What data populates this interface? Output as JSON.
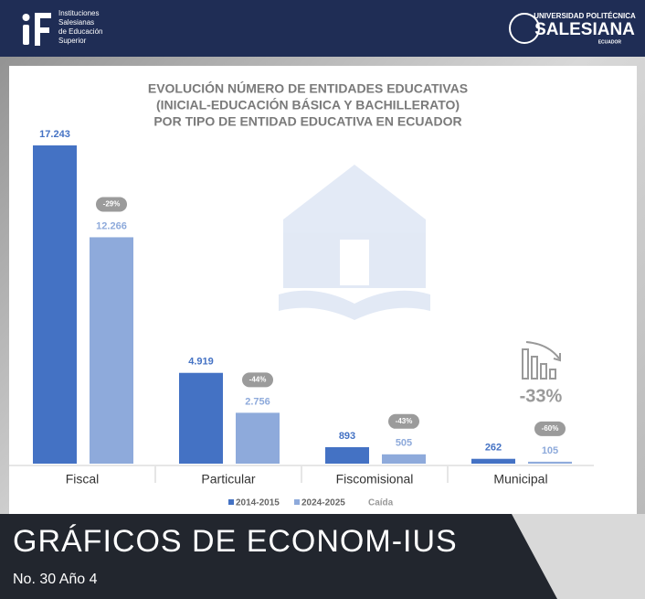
{
  "header": {
    "left_logo_text": [
      "Instituciones",
      "Salesianas",
      "de Educación",
      "Superior"
    ],
    "right_logo_top": "UNIVERSIDAD POLITÉCNICA",
    "right_logo_name": "SALESIANA",
    "right_logo_bottom": "ECUADOR"
  },
  "chart_data": {
    "type": "bar",
    "title": [
      "EVOLUCIÓN NÚMERO DE ENTIDADES EDUCATIVAS",
      "(INICIAL-EDUCACIÓN BÁSICA Y BACHILLERATO)",
      "POR TIPO DE ENTIDAD EDUCATIVA EN ECUADOR"
    ],
    "categories": [
      "Fiscal",
      "Particular",
      "Fiscomisional",
      "Municipal"
    ],
    "series": [
      {
        "name": "2014-2015",
        "color": "#4472c4",
        "values": [
          17243,
          4919,
          893,
          262
        ],
        "value_labels": [
          "17.243",
          "4.919",
          "893",
          "262"
        ]
      },
      {
        "name": "2024-2025",
        "color": "#8eaadb",
        "values": [
          12266,
          2756,
          505,
          105
        ],
        "value_labels": [
          "12.266",
          "2.756",
          "505",
          "105"
        ]
      }
    ],
    "changes": {
      "name": "Caída",
      "values": [
        -29,
        -44,
        -43,
        -60
      ],
      "value_labels": [
        "-29%",
        "-44%",
        "-43%",
        "-60%"
      ]
    },
    "total_change": {
      "value": -33,
      "label": "-33%"
    }
  },
  "footer": {
    "title": "GRÁFICOS DE ECONOM-IUS",
    "issue": "No. 30 Año 4"
  }
}
